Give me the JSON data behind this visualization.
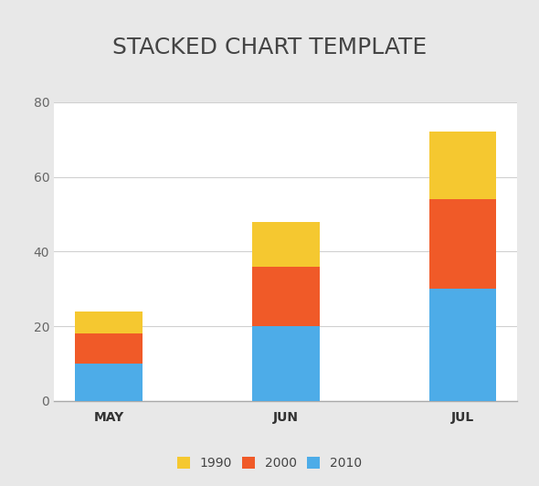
{
  "categories": [
    "MAY",
    "JUN",
    "JUL"
  ],
  "series": {
    "2010": [
      10,
      20,
      30
    ],
    "2000": [
      8,
      16,
      24
    ],
    "1990": [
      6,
      12,
      18
    ]
  },
  "colors": {
    "2010": "#4DACE8",
    "2000": "#F05A28",
    "1990": "#F5C830"
  },
  "title": "STACKED CHART TEMPLATE",
  "title_fontsize": 18,
  "title_color": "#444444",
  "ylim": [
    0,
    80
  ],
  "yticks": [
    0,
    20,
    40,
    60,
    80
  ],
  "legend_labels": [
    "1990",
    "2000",
    "2010"
  ],
  "background_outer": "#e8e8e8",
  "background_title": "#ffffff",
  "background_plot": "#ffffff",
  "bar_width": 0.38,
  "grid_color": "#d0d0d0",
  "tick_fontsize": 10,
  "legend_fontsize": 10
}
